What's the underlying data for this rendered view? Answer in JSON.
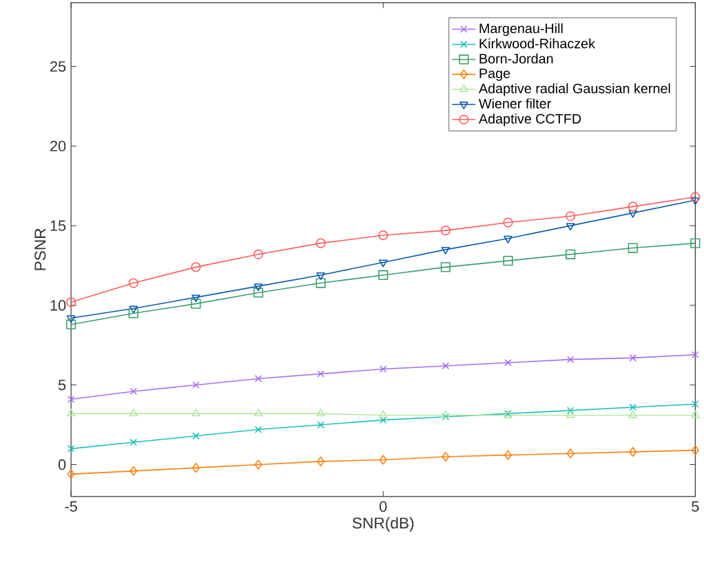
{
  "chart_data": {
    "type": "line",
    "xlabel": "SNR(dB)",
    "ylabel": "PSNR",
    "x": [
      -5,
      -4,
      -3,
      -2,
      -1,
      0,
      1,
      2,
      3,
      4,
      5
    ],
    "xlim": [
      -5,
      5
    ],
    "xticks": [
      -5,
      0,
      5
    ],
    "ylim": [
      -2,
      29
    ],
    "yticks": [
      0,
      5,
      10,
      15,
      20,
      25
    ],
    "grid": false,
    "legend": "top right",
    "line_style": "solid",
    "series": [
      {
        "name": "Margenau-Hill",
        "color": "#a66ef0",
        "marker": "cross",
        "values": [
          4.1,
          4.6,
          5.0,
          5.4,
          5.7,
          6.0,
          6.2,
          6.4,
          6.6,
          6.7,
          6.9
        ]
      },
      {
        "name": "Kirkwood-Rihaczek",
        "color": "#1fbfbf",
        "marker": "cross",
        "values": [
          1.0,
          1.4,
          1.8,
          2.2,
          2.5,
          2.8,
          3.0,
          3.2,
          3.4,
          3.6,
          3.8
        ]
      },
      {
        "name": "Born-Jordan",
        "color": "#3a9e6e",
        "marker": "square",
        "values": [
          8.8,
          9.5,
          10.1,
          10.8,
          11.4,
          11.9,
          12.4,
          12.8,
          13.2,
          13.6,
          13.9
        ]
      },
      {
        "name": "Page",
        "color": "#ff7f0e",
        "marker": "diamond",
        "values": [
          -0.6,
          -0.4,
          -0.2,
          0.0,
          0.2,
          0.3,
          0.5,
          0.6,
          0.7,
          0.8,
          0.9
        ]
      },
      {
        "name": "Adaptive radial Gaussian kernel",
        "color": "#b2e6a0",
        "marker": "triangle",
        "values": [
          3.2,
          3.2,
          3.2,
          3.2,
          3.2,
          3.1,
          3.1,
          3.1,
          3.1,
          3.1,
          3.1
        ]
      },
      {
        "name": "Wiener filter",
        "color": "#0b5cad",
        "marker": "triangle-down",
        "values": [
          9.2,
          9.8,
          10.5,
          11.2,
          11.9,
          12.7,
          13.5,
          14.2,
          15.0,
          15.8,
          16.6
        ]
      },
      {
        "name": "Adaptive CCTFD",
        "color": "#ff5c5c",
        "marker": "circle",
        "values": [
          10.2,
          11.4,
          12.4,
          13.2,
          13.9,
          14.4,
          14.7,
          15.2,
          15.6,
          16.2,
          16.8
        ]
      }
    ]
  }
}
